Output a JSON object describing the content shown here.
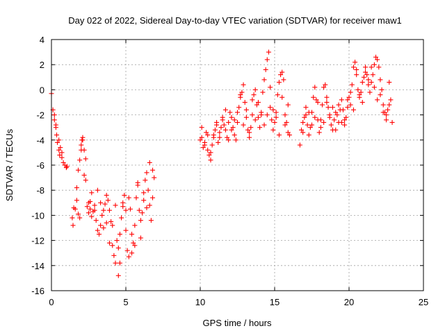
{
  "chart_data": {
    "type": "scatter",
    "title": "Day 022 of 2022, Sidereal Day-to-day VTEC variation (SDTVAR) for receiver maw1",
    "xlabel": "GPS time / hours",
    "ylabel": "SDTVAR / TECUs",
    "xlim": [
      0,
      25
    ],
    "ylim": [
      -16,
      4
    ],
    "xticks": [
      0,
      5,
      10,
      15,
      20,
      25
    ],
    "yticks": [
      -16,
      -14,
      -12,
      -10,
      -8,
      -6,
      -4,
      -2,
      0,
      2,
      4
    ],
    "grid": true,
    "marker": "+",
    "color": "#ff0000",
    "series": [
      {
        "name": "maw1",
        "x": [
          0.0,
          0.1,
          0.2,
          0.3,
          0.35,
          0.4,
          0.5,
          0.55,
          0.6,
          0.7,
          0.8,
          0.9,
          1.0,
          1.05,
          1.4,
          1.45,
          1.5,
          1.6,
          1.7,
          1.8,
          1.9,
          2.0,
          2.05,
          2.1,
          2.2,
          2.3,
          2.4,
          2.5,
          2.6,
          2.7,
          2.8,
          2.9,
          3.0,
          3.1,
          3.2,
          3.3,
          3.4,
          3.5,
          3.6,
          3.7,
          3.8,
          3.9,
          4.0,
          4.1,
          4.2,
          4.3,
          4.4,
          4.5,
          4.6,
          4.7,
          4.8,
          4.9,
          5.0,
          5.1,
          5.2,
          5.3,
          5.4,
          5.5,
          5.6,
          5.7,
          5.8,
          5.9,
          6.0,
          6.1,
          6.2,
          6.3,
          6.4,
          6.5,
          6.6,
          6.7,
          6.8,
          6.9,
          10.0,
          10.1,
          10.2,
          10.3,
          10.4,
          10.5,
          10.6,
          10.7,
          10.8,
          10.9,
          11.0,
          11.1,
          11.2,
          11.3,
          11.4,
          11.5,
          11.6,
          11.7,
          11.8,
          11.9,
          12.0,
          12.1,
          12.2,
          12.3,
          12.4,
          12.5,
          12.6,
          12.7,
          12.8,
          12.9,
          13.0,
          13.1,
          13.2,
          13.3,
          13.4,
          13.5,
          13.6,
          13.7,
          13.8,
          13.9,
          14.0,
          14.1,
          14.2,
          14.3,
          14.4,
          14.5,
          14.6,
          14.7,
          14.8,
          14.9,
          15.0,
          15.1,
          15.2,
          15.3,
          15.4,
          15.5,
          15.6,
          15.7,
          15.8,
          15.9,
          16.0,
          16.7,
          16.8,
          16.9,
          17.0,
          17.1,
          17.2,
          17.3,
          17.4,
          17.5,
          17.6,
          17.7,
          17.8,
          17.9,
          18.0,
          18.1,
          18.2,
          18.3,
          18.4,
          18.5,
          18.6,
          18.7,
          18.8,
          18.9,
          19.0,
          19.1,
          19.2,
          19.3,
          19.4,
          19.5,
          19.6,
          19.7,
          19.8,
          19.9,
          20.0,
          20.1,
          20.2,
          20.3,
          20.4,
          20.5,
          20.6,
          20.7,
          20.8,
          20.9,
          21.0,
          21.1,
          21.2,
          21.3,
          21.4,
          21.5,
          21.6,
          21.7,
          21.8,
          21.9,
          22.0,
          22.1,
          22.2,
          22.3,
          22.4,
          22.5,
          22.6,
          22.7,
          22.8,
          22.9,
          0.2,
          0.3,
          0.5,
          0.7,
          1.7,
          1.8,
          1.9,
          2.0,
          2.1,
          2.2,
          2.3,
          2.5,
          2.6,
          2.7,
          2.9,
          3.1,
          3.3,
          3.5,
          3.7,
          3.9,
          4.1,
          4.3,
          4.5,
          4.6,
          4.8,
          5.0,
          5.2,
          5.4,
          5.6,
          5.8,
          6.0,
          6.2,
          6.4,
          6.6,
          6.8,
          10.1,
          10.3,
          10.5,
          10.7,
          10.9,
          11.1,
          11.3,
          11.5,
          11.7,
          11.9,
          12.1,
          12.3,
          12.5,
          12.7,
          12.9,
          13.1,
          13.3,
          13.5,
          13.7,
          13.9,
          14.1,
          14.3,
          14.5,
          14.7,
          14.9,
          15.1,
          15.3,
          15.5,
          15.7,
          15.9,
          16.9,
          17.1,
          17.3,
          17.5,
          17.7,
          17.9,
          18.1,
          18.3,
          18.5,
          18.7,
          18.9,
          19.1,
          19.3,
          19.5,
          19.7,
          19.9,
          20.1,
          20.3,
          20.5,
          20.7,
          20.9,
          21.1,
          21.3,
          21.5,
          21.7,
          21.9,
          22.1,
          22.3,
          22.5,
          22.7
        ],
        "y": [
          -0.3,
          -1.6,
          -2.4,
          -3.0,
          -3.6,
          -4.2,
          -4.8,
          -5.2,
          -4.6,
          -5.4,
          -5.8,
          -6.0,
          -6.2,
          -6.1,
          -10.2,
          -10.8,
          -9.4,
          -9.5,
          -8.8,
          -9.9,
          -10.2,
          -4.4,
          -4.0,
          -3.8,
          -4.8,
          -5.5,
          -9.3,
          -9.0,
          -9.5,
          -10.1,
          -9.7,
          -9.2,
          -10.4,
          -11.2,
          -11.5,
          -10.8,
          -10.0,
          -9.6,
          -9.1,
          -8.4,
          -8.8,
          -9.6,
          -10.5,
          -12.4,
          -13.2,
          -13.8,
          -12.0,
          -14.8,
          -11.5,
          -10.2,
          -9.3,
          -8.4,
          -9.6,
          -12.8,
          -13.3,
          -9.5,
          -11.5,
          -12.2,
          -10.8,
          -8.6,
          -7.6,
          -9.6,
          -10.4,
          -9.8,
          -8.2,
          -7.2,
          -6.6,
          -8.0,
          -9.2,
          -10.4,
          -8.6,
          -7.0,
          -4.0,
          -3.8,
          -4.6,
          -4.2,
          -3.4,
          -4.8,
          -5.2,
          -5.6,
          -4.4,
          -3.6,
          -3.2,
          -2.8,
          -4.2,
          -3.8,
          -3.0,
          -2.4,
          -2.8,
          -3.2,
          -3.8,
          -2.6,
          -1.8,
          -2.2,
          -3.0,
          -3.6,
          -4.0,
          -2.6,
          -1.4,
          -0.6,
          -0.2,
          0.4,
          -1.0,
          -2.2,
          -3.2,
          -3.8,
          -3.0,
          -2.0,
          -0.4,
          0.0,
          -1.2,
          -2.2,
          -3.0,
          -1.8,
          -0.2,
          0.8,
          1.6,
          2.4,
          3.0,
          -1.4,
          -2.4,
          -3.2,
          -2.6,
          -1.8,
          -0.4,
          0.6,
          1.2,
          1.4,
          0.8,
          -2.0,
          -2.6,
          -3.4,
          -3.6,
          -4.4,
          -3.2,
          -2.6,
          -2.2,
          -1.4,
          -2.8,
          -3.6,
          -3.0,
          -1.8,
          -0.6,
          0.2,
          -0.8,
          -2.4,
          -3.4,
          -2.4,
          -1.2,
          0.2,
          0.4,
          -0.6,
          -1.4,
          -2.2,
          -2.8,
          -3.2,
          -2.4,
          -1.8,
          -2.0,
          -2.6,
          -1.6,
          -0.8,
          -1.6,
          -2.4,
          -2.2,
          -1.4,
          -0.6,
          -1.2,
          0.4,
          1.8,
          2.2,
          1.2,
          0.0,
          -0.6,
          -0.2,
          0.6,
          1.0,
          1.8,
          1.2,
          0.4,
          -0.2,
          0.6,
          1.2,
          2.0,
          2.6,
          2.4,
          1.8,
          0.8,
          0.0,
          -1.2,
          -1.8,
          -2.4,
          -1.6,
          0.6,
          -0.8,
          -2.6,
          -2.0,
          -2.8,
          -4.0,
          -5.0,
          -7.8,
          -6.4,
          -5.6,
          -4.8,
          -4.0,
          -6.8,
          -7.2,
          -9.8,
          -8.9,
          -8.2,
          -9.6,
          -8.0,
          -9.0,
          -11.0,
          -10.6,
          -12.2,
          -10.8,
          -9.2,
          -12.6,
          -13.8,
          -9.0,
          -11.2,
          -8.6,
          -13.0,
          -12.4,
          -7.4,
          -11.8,
          -8.8,
          -9.4,
          -5.8,
          -6.4,
          -3.0,
          -4.4,
          -3.6,
          -5.0,
          -3.8,
          -2.6,
          -3.4,
          -2.2,
          -1.6,
          -4.0,
          -3.2,
          -2.4,
          -1.8,
          -0.4,
          -2.8,
          -1.6,
          -3.4,
          -0.8,
          -2.4,
          -1.0,
          -2.0,
          -2.8,
          -2.0,
          0.2,
          -1.6,
          -2.2,
          -3.6,
          -0.6,
          -2.8,
          -1.2,
          -3.4,
          -2.0,
          -1.8,
          -2.8,
          -2.2,
          -1.0,
          -3.0,
          -2.6,
          -1.0,
          -2.0,
          -1.4,
          -3.2,
          -1.2,
          -2.6,
          -2.8,
          -0.8,
          -0.2,
          -1.6,
          1.6,
          -0.4,
          -1.0,
          1.4,
          0.8,
          1.8,
          0.2,
          -0.8,
          -0.4,
          -1.8,
          -2.0,
          -1.2
        ]
      }
    ]
  }
}
